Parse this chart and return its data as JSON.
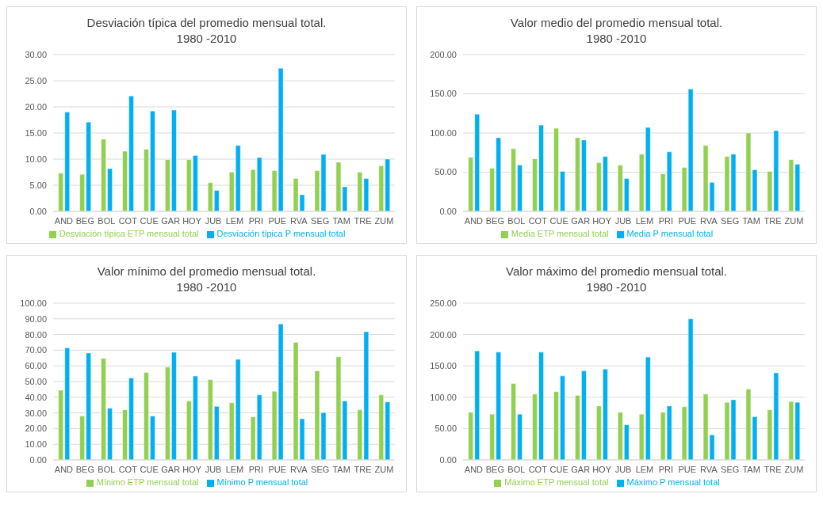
{
  "chart_data": [
    {
      "type": "bar",
      "title": "Desviación típica del promedio mensual total.",
      "subtitle": "1980 -2010",
      "categories": [
        "AND",
        "BEG",
        "BOL",
        "COT",
        "CUE",
        "GAR",
        "HOY",
        "JUB",
        "LEM",
        "PRI",
        "PUE",
        "RVA",
        "SEG",
        "TAM",
        "TRE",
        "ZUM"
      ],
      "series": [
        {
          "name": "Desviación típica ETP mensual total",
          "color": "#92d050",
          "values": [
            7.3,
            7.1,
            13.8,
            11.5,
            11.9,
            9.9,
            9.9,
            5.5,
            7.5,
            8.0,
            7.8,
            6.3,
            7.8,
            9.4,
            7.5,
            8.7
          ]
        },
        {
          "name": "Desviación típica P mensual total",
          "color": "#00b0f0",
          "values": [
            19.0,
            17.1,
            8.2,
            22.1,
            19.2,
            19.4,
            10.7,
            4.0,
            12.6,
            10.3,
            27.4,
            3.2,
            10.9,
            4.7,
            6.3,
            10.0
          ]
        }
      ],
      "ylim": [
        0,
        30
      ],
      "yticks": [
        {
          "value": 0,
          "label": "0.00"
        },
        {
          "value": 5,
          "label": "5.00"
        },
        {
          "value": 10,
          "label": "10.00"
        },
        {
          "value": 15,
          "label": "15.00"
        },
        {
          "value": 20,
          "label": "20.00"
        },
        {
          "value": 25,
          "label": "25.00"
        },
        {
          "value": 30,
          "label": "30.00"
        }
      ],
      "grid": "y",
      "legend": "bottom"
    },
    {
      "type": "bar",
      "title": "Valor medio del promedio mensual total.",
      "subtitle": "1980 -2010",
      "categories": [
        "AND",
        "BEG",
        "BOL",
        "COT",
        "CUE",
        "GAR",
        "HOY",
        "JUB",
        "LEM",
        "PRI",
        "PUE",
        "RVA",
        "SEG",
        "TAM",
        "TRE",
        "ZUM"
      ],
      "series": [
        {
          "name": "Media ETP mensual total",
          "color": "#92d050",
          "values": [
            69,
            55,
            80,
            67,
            106,
            94,
            62,
            59,
            73,
            48,
            56,
            84,
            70,
            100,
            51,
            66
          ]
        },
        {
          "name": "Media P mensual total",
          "color": "#00b0f0",
          "values": [
            124,
            94,
            59,
            110,
            51,
            91,
            70,
            42,
            107,
            76,
            156,
            37,
            73,
            53,
            103,
            60
          ]
        }
      ],
      "ylim": [
        0,
        200
      ],
      "yticks": [
        {
          "value": 0,
          "label": "0.00"
        },
        {
          "value": 50,
          "label": "50.00"
        },
        {
          "value": 100,
          "label": "100.00"
        },
        {
          "value": 150,
          "label": "150.00"
        },
        {
          "value": 200,
          "label": "200.00"
        }
      ],
      "grid": "y",
      "legend": "bottom"
    },
    {
      "type": "bar",
      "title": "Valor mínimo del promedio mensual total.",
      "subtitle": "1980 -2010",
      "categories": [
        "AND",
        "BEG",
        "BOL",
        "COT",
        "CUE",
        "GAR",
        "HOY",
        "JUB",
        "LEM",
        "PRI",
        "PUE",
        "RVA",
        "SEG",
        "TAM",
        "TRE",
        "ZUM"
      ],
      "series": [
        {
          "name": "Mínimo ETP mensual total",
          "color": "#92d050",
          "values": [
            44.5,
            28,
            64.8,
            32,
            55.8,
            59.2,
            37.6,
            51.2,
            36.5,
            27.5,
            43.8,
            75,
            56.8,
            65.8,
            32,
            41.5
          ]
        },
        {
          "name": "Mínimo P mensual total",
          "color": "#00b0f0",
          "values": [
            71.5,
            68.2,
            33,
            52.3,
            28,
            68.7,
            53.5,
            34.2,
            64.2,
            41.5,
            86.8,
            26.3,
            30.2,
            37.6,
            81.8,
            37
          ]
        }
      ],
      "ylim": [
        0,
        100
      ],
      "yticks": [
        {
          "value": 0,
          "label": "0.00"
        },
        {
          "value": 10,
          "label": "10.00"
        },
        {
          "value": 20,
          "label": "20.00"
        },
        {
          "value": 30,
          "label": "30.00"
        },
        {
          "value": 40,
          "label": "40.00"
        },
        {
          "value": 50,
          "label": "50.00"
        },
        {
          "value": 60,
          "label": "60.00"
        },
        {
          "value": 70,
          "label": "70.00"
        },
        {
          "value": 80,
          "label": "80.00"
        },
        {
          "value": 90,
          "label": "90.00"
        },
        {
          "value": 100,
          "label": "100.00"
        }
      ],
      "grid": "y",
      "legend": "bottom"
    },
    {
      "type": "bar",
      "title": "Valor máximo del promedio mensual total.",
      "subtitle": "1980 -2010",
      "categories": [
        "AND",
        "BEG",
        "BOL",
        "COT",
        "CUE",
        "GAR",
        "HOY",
        "JUB",
        "LEM",
        "PRI",
        "PUE",
        "RVA",
        "SEG",
        "TAM",
        "TRE",
        "ZUM"
      ],
      "series": [
        {
          "name": "Máximo ETP mensual total",
          "color": "#92d050",
          "values": [
            76,
            73,
            122,
            105,
            109,
            103,
            86,
            76,
            73,
            76,
            85,
            105,
            92,
            113,
            80,
            93
          ]
        },
        {
          "name": "Máximo P mensual total",
          "color": "#00b0f0",
          "values": [
            174,
            172,
            73,
            172,
            134,
            142,
            145,
            56,
            164,
            86,
            225,
            40,
            96,
            69,
            139,
            92
          ]
        }
      ],
      "ylim": [
        0,
        250
      ],
      "yticks": [
        {
          "value": 0,
          "label": "0.00"
        },
        {
          "value": 50,
          "label": "50.00"
        },
        {
          "value": 100,
          "label": "100.00"
        },
        {
          "value": 150,
          "label": "150.00"
        },
        {
          "value": 200,
          "label": "200.00"
        },
        {
          "value": 250,
          "label": "250.00"
        }
      ],
      "grid": "y",
      "legend": "bottom"
    }
  ]
}
